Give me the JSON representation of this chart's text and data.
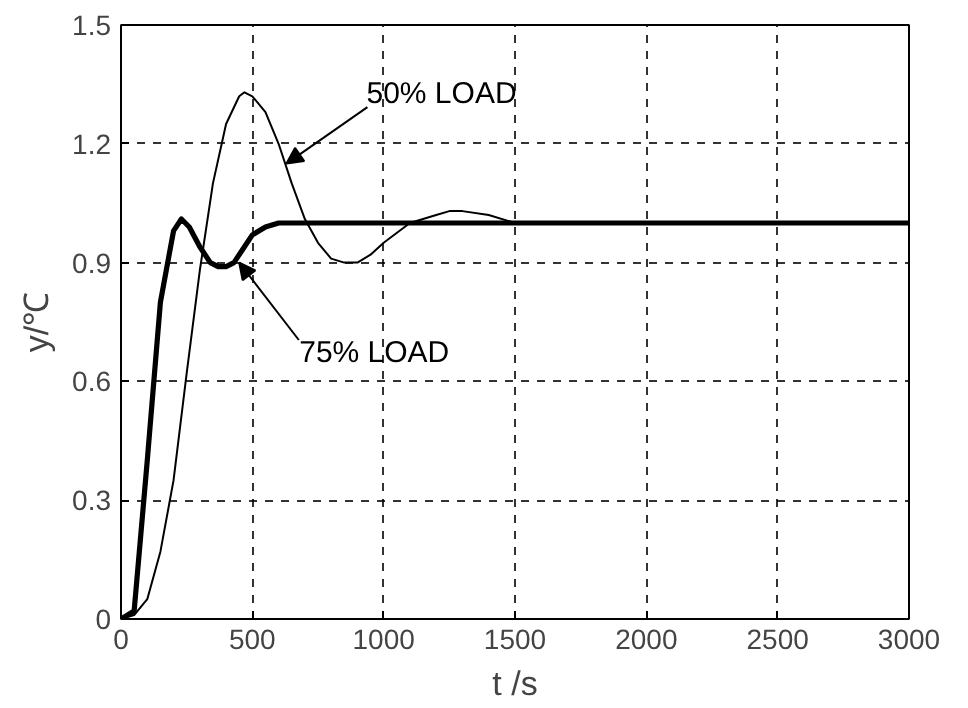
{
  "chart_data": {
    "type": "line",
    "xlabel": "t /s",
    "ylabel": "y/℃",
    "xlim": [
      0,
      3000
    ],
    "ylim": [
      0,
      1.5
    ],
    "xticks": [
      0,
      500,
      1000,
      1500,
      2000,
      2500,
      3000
    ],
    "yticks": [
      0,
      0.3,
      0.6,
      0.9,
      1.2,
      1.5
    ],
    "grid": true,
    "line_style": "solid",
    "series": [
      {
        "color": "#000000",
        "x": [
          0,
          50,
          100,
          150,
          200,
          250,
          300,
          350,
          400,
          450,
          470,
          500,
          550,
          600,
          650,
          700,
          750,
          800,
          850,
          900,
          950,
          1000,
          1100,
          1200,
          1250,
          1300,
          1400,
          1500,
          1800,
          3000
        ],
        "values": [
          0,
          0.01,
          0.05,
          0.17,
          0.35,
          0.62,
          0.88,
          1.1,
          1.25,
          1.32,
          1.33,
          1.32,
          1.28,
          1.2,
          1.1,
          1.01,
          0.95,
          0.91,
          0.9,
          0.9,
          0.92,
          0.95,
          1.0,
          1.02,
          1.03,
          1.03,
          1.02,
          1.0,
          1.0,
          1.0
        ]
      },
      {
        "color": "#000000",
        "x": [
          0,
          50,
          100,
          150,
          200,
          230,
          260,
          300,
          340,
          370,
          400,
          430,
          470,
          500,
          550,
          600,
          700,
          800,
          3000
        ],
        "values": [
          0,
          0.02,
          0.4,
          0.8,
          0.98,
          1.01,
          0.99,
          0.94,
          0.9,
          0.89,
          0.89,
          0.9,
          0.94,
          0.97,
          0.99,
          1.0,
          1.0,
          1.0,
          1.0
        ]
      }
    ],
    "annotations": [
      {
        "text": "50% LOAD",
        "x": 630,
        "y": 1.15
      },
      {
        "text": "75% LOAD",
        "x": 450,
        "y": 0.9
      }
    ]
  }
}
